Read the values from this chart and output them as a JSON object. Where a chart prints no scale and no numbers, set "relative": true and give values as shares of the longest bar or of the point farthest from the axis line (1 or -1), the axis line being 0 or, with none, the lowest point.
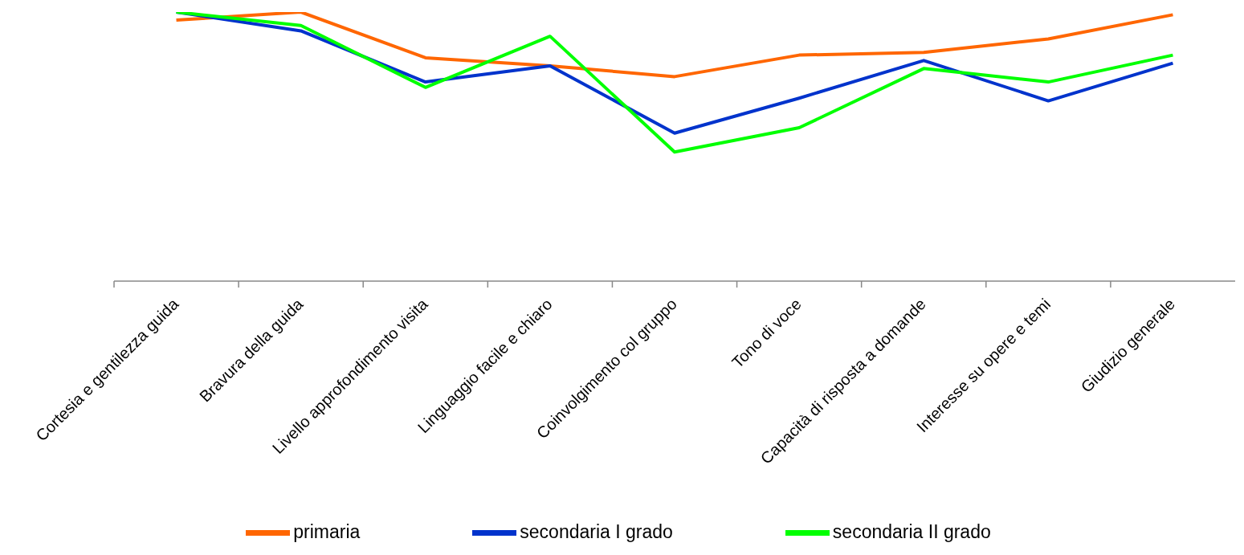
{
  "chart_data": {
    "type": "line",
    "relative": true,
    "categories": [
      "Cortesia e gentilezza guida",
      "Bravura della guida",
      "Livello approfondimento visita",
      "Linguaggio facile e chiaro",
      "Coinvolgimento col gruppo",
      "Tono di voce",
      "Capacità di risposta a domande",
      "Interesse su opere e temi",
      "Giudizio generale"
    ],
    "series": [
      {
        "name": "primaria",
        "color": "#ff6600",
        "values": [
          0.97,
          1.0,
          0.83,
          0.8,
          0.76,
          0.84,
          0.85,
          0.9,
          0.99
        ]
      },
      {
        "name": "secondaria I grado",
        "color": "#0033cc",
        "values": [
          1.0,
          0.93,
          0.74,
          0.8,
          0.55,
          0.68,
          0.82,
          0.67,
          0.81
        ]
      },
      {
        "name": "secondaria II grado",
        "color": "#00ff00",
        "values": [
          1.0,
          0.95,
          0.72,
          0.91,
          0.48,
          0.57,
          0.79,
          0.74,
          0.84
        ]
      }
    ],
    "legend": "bottom",
    "grid": false,
    "marker": "none",
    "line_style": "solid"
  }
}
